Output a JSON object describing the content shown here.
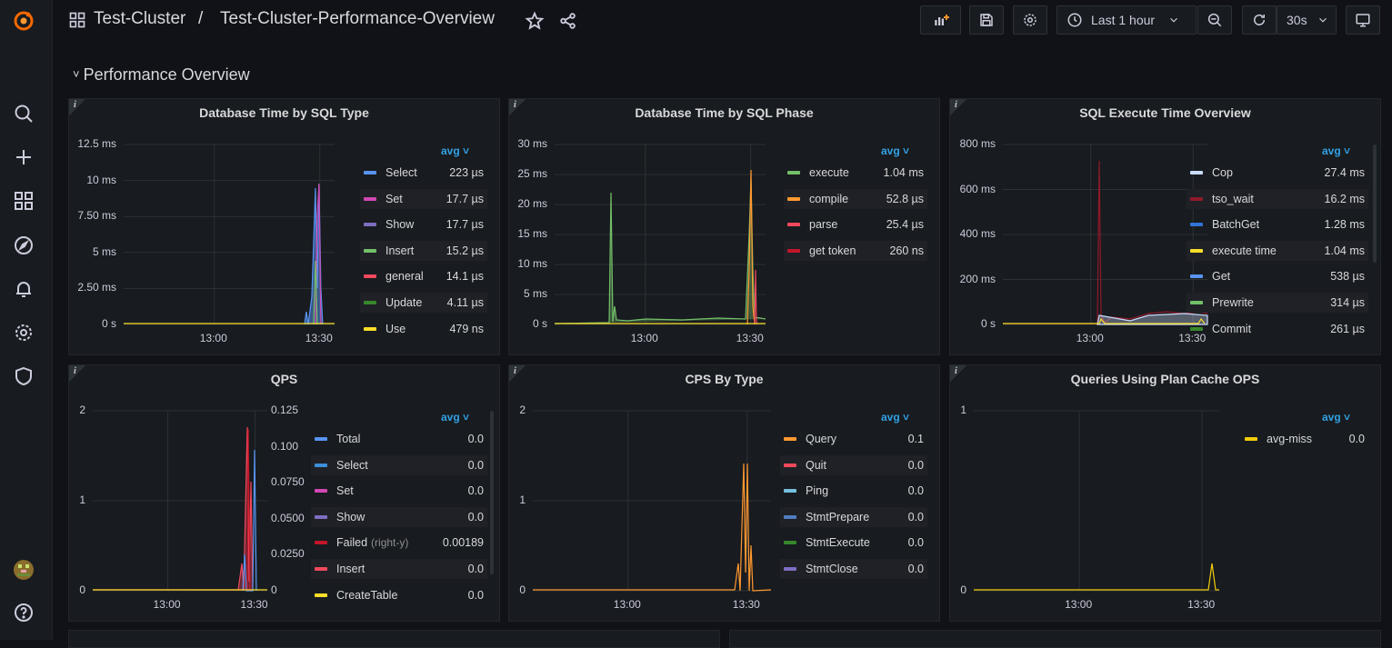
{
  "header": {
    "folder": "Test-Cluster",
    "separator": "/",
    "dashboard": "Test-Cluster-Performance-Overview",
    "time_range": "Last 1 hour",
    "refresh": "30s"
  },
  "row_title": "Performance Overview",
  "legend_sort": "avg",
  "colors": {
    "blue": "#5794f2",
    "pink": "#d147b4",
    "purple": "#7f6ec1",
    "green": "#73bf69",
    "red": "#f2495c",
    "darkgreen": "#37872d",
    "yellow": "#fade2a",
    "orange": "#ff9830",
    "darkred": "#c4162a",
    "lightblue": "#8ab8ff",
    "cyan": "#73c0de",
    "slate": "#4f7fbf"
  },
  "panels": {
    "p1": {
      "title": "Database Time by SQL Type",
      "yticks": [
        "12.5 ms",
        "10 ms",
        "7.50 ms",
        "5 ms",
        "2.50 ms",
        "0 s"
      ],
      "xticks": [
        "13:00",
        "13:30"
      ],
      "legend": [
        {
          "name": "Select",
          "value": "223 µs",
          "color": "#5794f2"
        },
        {
          "name": "Set",
          "value": "17.7 µs",
          "color": "#d147b4"
        },
        {
          "name": "Show",
          "value": "17.7 µs",
          "color": "#7f6ec1"
        },
        {
          "name": "Insert",
          "value": "15.2 µs",
          "color": "#73bf69"
        },
        {
          "name": "general",
          "value": "14.1 µs",
          "color": "#f2495c"
        },
        {
          "name": "Update",
          "value": "4.11 µs",
          "color": "#37872d"
        },
        {
          "name": "Use",
          "value": "479 ns",
          "color": "#fade2a"
        }
      ]
    },
    "p2": {
      "title": "Database Time by SQL Phase",
      "yticks": [
        "30 ms",
        "25 ms",
        "20 ms",
        "15 ms",
        "10 ms",
        "5 ms",
        "0 s"
      ],
      "xticks": [
        "13:00",
        "13:30"
      ],
      "legend": [
        {
          "name": "execute",
          "value": "1.04 ms",
          "color": "#73bf69"
        },
        {
          "name": "compile",
          "value": "52.8 µs",
          "color": "#ff9830"
        },
        {
          "name": "parse",
          "value": "25.4 µs",
          "color": "#f2495c"
        },
        {
          "name": "get token",
          "value": "260 ns",
          "color": "#c4162a"
        }
      ]
    },
    "p3": {
      "title": "SQL Execute Time Overview",
      "yticks": [
        "800 ms",
        "600 ms",
        "400 ms",
        "200 ms",
        "0 s"
      ],
      "xticks": [
        "13:00",
        "13:30"
      ],
      "legend": [
        {
          "name": "Cop",
          "value": "27.4 ms",
          "color": "#cadcfc"
        },
        {
          "name": "tso_wait",
          "value": "16.2 ms",
          "color": "#8f1a2a"
        },
        {
          "name": "BatchGet",
          "value": "1.28 ms",
          "color": "#3274d9"
        },
        {
          "name": "execute time",
          "value": "1.04 ms",
          "color": "#fade2a"
        },
        {
          "name": "Get",
          "value": "538 µs",
          "color": "#5794f2"
        },
        {
          "name": "Prewrite",
          "value": "314 µs",
          "color": "#73bf69"
        },
        {
          "name": "Commit",
          "value": "261 µs",
          "color": "#37872d"
        }
      ]
    },
    "p4": {
      "title": "QPS",
      "yticks": [
        "2",
        "1",
        "0"
      ],
      "yticks_right": [
        "0.125",
        "0.100",
        "0.0750",
        "0.0500",
        "0.0250",
        "0"
      ],
      "xticks": [
        "13:00",
        "13:30"
      ],
      "right_y_note": "(right-y)",
      "legend": [
        {
          "name": "Total",
          "value": "0.0",
          "color": "#5794f2"
        },
        {
          "name": "Select",
          "value": "0.0",
          "color": "#3d8fd8"
        },
        {
          "name": "Set",
          "value": "0.0",
          "color": "#d147b4"
        },
        {
          "name": "Show",
          "value": "0.0",
          "color": "#7f6ec1"
        },
        {
          "name": "Failed",
          "value": "0.00189",
          "color": "#c4162a"
        },
        {
          "name": "Insert",
          "value": "0.0",
          "color": "#f2495c"
        },
        {
          "name": "CreateTable",
          "value": "0.0",
          "color": "#fade2a"
        }
      ]
    },
    "p5": {
      "title": "CPS By Type",
      "yticks": [
        "2",
        "1",
        "0"
      ],
      "xticks": [
        "13:00",
        "13:30"
      ],
      "legend": [
        {
          "name": "Query",
          "value": "0.1",
          "color": "#ff9830"
        },
        {
          "name": "Quit",
          "value": "0.0",
          "color": "#f2495c"
        },
        {
          "name": "Ping",
          "value": "0.0",
          "color": "#73c0de"
        },
        {
          "name": "StmtPrepare",
          "value": "0.0",
          "color": "#4f7fbf"
        },
        {
          "name": "StmtExecute",
          "value": "0.0",
          "color": "#37872d"
        },
        {
          "name": "StmtClose",
          "value": "0.0",
          "color": "#7f6ec1"
        }
      ]
    },
    "p6": {
      "title": "Queries Using Plan Cache OPS",
      "yticks": [
        "1",
        "0"
      ],
      "xticks": [
        "13:00",
        "13:30"
      ],
      "legend": [
        {
          "name": "avg-miss",
          "value": "0.0",
          "color": "#f2cc0c"
        }
      ]
    }
  }
}
